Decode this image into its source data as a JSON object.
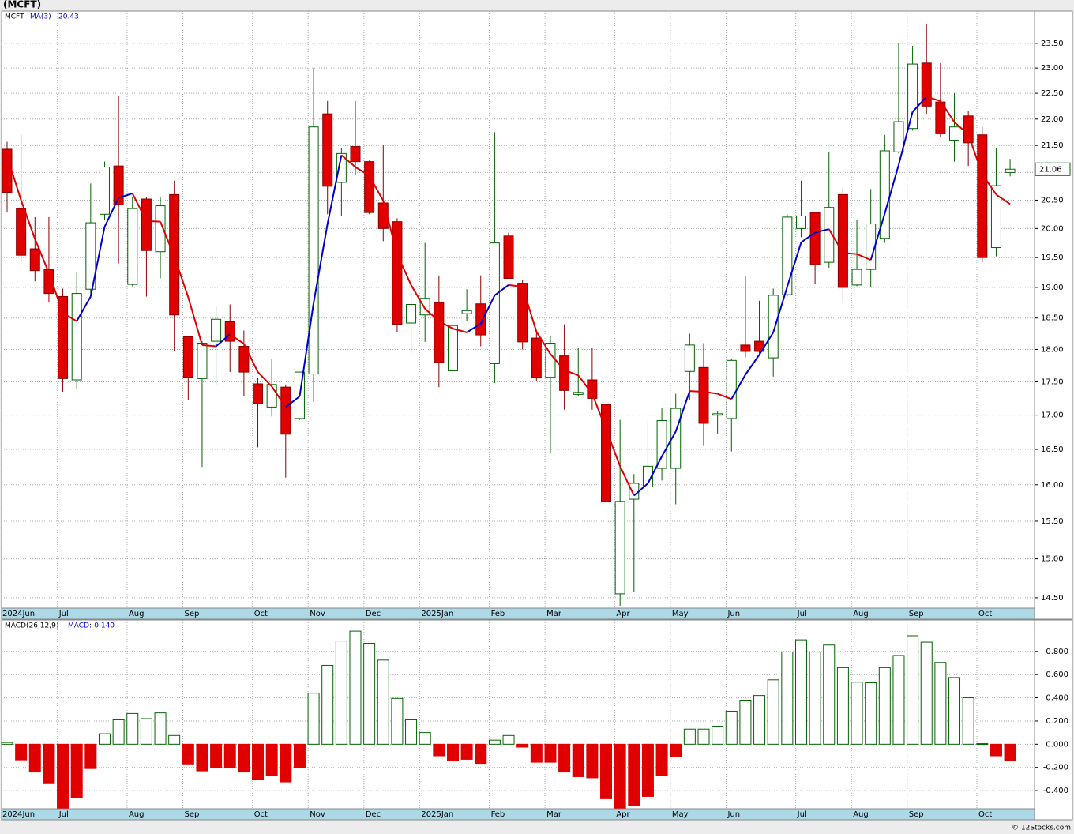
{
  "chart_data": [
    {
      "type": "candlestick",
      "title": "(MCFT)",
      "symbol": "MCFT",
      "categories": [
        "2024Jun",
        null,
        null,
        null,
        "Jul",
        null,
        null,
        null,
        null,
        "Aug",
        null,
        null,
        null,
        "Sep",
        null,
        null,
        null,
        null,
        "Oct",
        null,
        null,
        null,
        "Nov",
        null,
        null,
        null,
        "Dec",
        null,
        null,
        null,
        "2025Jan",
        null,
        null,
        null,
        null,
        "Feb",
        null,
        null,
        null,
        "Mar",
        null,
        null,
        null,
        null,
        "Apr",
        null,
        null,
        null,
        "May",
        null,
        null,
        null,
        "Jun",
        null,
        null,
        null,
        null,
        "Jul",
        null,
        null,
        null,
        "Aug",
        null,
        null,
        null,
        "Sep",
        null,
        null,
        null,
        null,
        "Oct",
        null,
        null
      ],
      "open": [
        21.43,
        20.35,
        19.65,
        19.3,
        18.85,
        17.53,
        18.97,
        20.25,
        21.12,
        19.05,
        20.52,
        19.6,
        20.6,
        18.2,
        17.55,
        18.13,
        18.44,
        18.05,
        17.47,
        17.12,
        17.42,
        16.95,
        17.62,
        22.1,
        20.82,
        21.48,
        21.2,
        20.45,
        20.12,
        18.42,
        18.55,
        18.75,
        17.67,
        18.57,
        18.73,
        17.78,
        19.87,
        19.07,
        18.18,
        17.57,
        17.9,
        17.31,
        17.53,
        17.16,
        14.55,
        15.8,
        15.97,
        16.23,
        16.23,
        17.66,
        17.72,
        17.0,
        16.95,
        18.07,
        18.13,
        17.87,
        18.88,
        20.0,
        20.28,
        19.42,
        20.6,
        19.04,
        19.3,
        19.83,
        21.38,
        21.82,
        23.1,
        22.33,
        21.6,
        22.06,
        21.7,
        19.67,
        21.0
      ],
      "high": [
        21.57,
        21.7,
        20.2,
        20.2,
        18.98,
        19.25,
        20.8,
        21.2,
        22.45,
        20.55,
        20.55,
        20.55,
        20.85,
        18.2,
        18.13,
        18.7,
        18.72,
        18.3,
        17.56,
        17.85,
        17.46,
        17.65,
        23.0,
        22.35,
        21.45,
        22.35,
        21.22,
        21.5,
        20.18,
        19.2,
        19.75,
        19.2,
        18.48,
        18.97,
        19.2,
        21.75,
        19.93,
        19.12,
        18.3,
        18.22,
        18.4,
        18.02,
        18.02,
        17.55,
        16.93,
        16.15,
        16.92,
        17.1,
        17.32,
        18.25,
        18.1,
        17.06,
        17.86,
        19.18,
        18.78,
        18.98,
        20.25,
        20.85,
        20.28,
        21.38,
        20.72,
        20.15,
        20.7,
        21.7,
        23.5,
        23.45,
        23.9,
        23.1,
        22.5,
        22.15,
        21.85,
        21.45,
        21.25
      ],
      "low": [
        20.28,
        19.45,
        19.1,
        18.75,
        17.35,
        17.4,
        18.88,
        20.15,
        19.4,
        19.02,
        18.85,
        19.15,
        17.97,
        17.22,
        16.25,
        17.45,
        17.65,
        17.28,
        16.53,
        16.98,
        16.1,
        16.93,
        17.2,
        20.25,
        20.22,
        20.95,
        20.25,
        19.78,
        18.27,
        17.9,
        18.12,
        17.42,
        17.63,
        18.45,
        18.05,
        17.48,
        19.15,
        18.0,
        17.51,
        16.46,
        17.08,
        17.29,
        17.08,
        15.4,
        14.4,
        14.57,
        15.88,
        16.06,
        15.73,
        17.23,
        16.55,
        16.73,
        16.47,
        17.88,
        17.93,
        17.58,
        18.85,
        19.85,
        19.05,
        19.33,
        18.75,
        19.02,
        19.0,
        19.75,
        21.35,
        21.78,
        22.1,
        21.65,
        21.2,
        21.12,
        19.42,
        19.52,
        20.93
      ],
      "close": [
        20.64,
        19.54,
        19.28,
        18.9,
        17.55,
        18.9,
        20.1,
        21.1,
        20.42,
        20.35,
        19.62,
        20.4,
        18.55,
        17.57,
        18.1,
        18.48,
        18.13,
        17.65,
        17.17,
        17.46,
        16.72,
        17.65,
        21.85,
        20.75,
        21.35,
        21.2,
        20.28,
        20.0,
        18.4,
        18.72,
        18.82,
        17.8,
        18.38,
        18.62,
        18.23,
        19.75,
        19.15,
        18.12,
        17.57,
        18.1,
        17.37,
        17.34,
        17.25,
        15.77,
        15.77,
        16.02,
        16.26,
        16.92,
        17.1,
        18.07,
        16.88,
        17.02,
        17.83,
        17.97,
        17.97,
        18.87,
        20.2,
        20.22,
        19.38,
        20.37,
        19.0,
        19.3,
        20.08,
        21.4,
        21.95,
        23.08,
        22.25,
        21.72,
        21.85,
        21.55,
        19.5,
        20.76,
        21.06
      ],
      "up_color": "#006400",
      "down_color": "#e00000",
      "series": [
        {
          "name": "MA(3)",
          "rising_color": "#0000cc",
          "falling_color": "#e00000",
          "values": [
            21.3,
            20.5,
            19.82,
            19.24,
            18.58,
            18.45,
            18.85,
            20.03,
            20.54,
            20.62,
            20.13,
            20.12,
            19.52,
            18.84,
            18.07,
            18.05,
            18.24,
            18.09,
            17.65,
            17.43,
            17.12,
            17.28,
            18.74,
            20.08,
            21.32,
            21.1,
            20.94,
            20.49,
            19.56,
            19.04,
            18.65,
            18.45,
            18.33,
            18.27,
            18.41,
            18.87,
            19.04,
            19.01,
            18.28,
            17.93,
            17.68,
            17.6,
            17.32,
            16.79,
            16.26,
            15.85,
            16.02,
            16.4,
            16.76,
            17.36,
            17.35,
            17.32,
            17.24,
            17.61,
            17.92,
            18.27,
            19.01,
            19.76,
            19.93,
            19.99,
            19.58,
            19.56,
            19.46,
            20.26,
            21.14,
            22.14,
            22.43,
            22.35,
            21.94,
            21.71,
            20.97,
            20.6,
            20.43
          ]
        }
      ],
      "ylim": [
        14.37,
        24.17
      ],
      "log_scale": true,
      "grid": true,
      "yticks": [
        {
          "value": 14.5,
          "label": "14.50"
        },
        {
          "value": 15,
          "label": "15.00"
        },
        {
          "value": 15.5,
          "label": "15.50"
        },
        {
          "value": 16,
          "label": "16.00"
        },
        {
          "value": 16.5,
          "label": "16.50"
        },
        {
          "value": 17,
          "label": "17.00"
        },
        {
          "value": 17.5,
          "label": "17.50"
        },
        {
          "value": 18,
          "label": "18.00"
        },
        {
          "value": 18.5,
          "label": "18.50"
        },
        {
          "value": 19,
          "label": "19.00"
        },
        {
          "value": 19.5,
          "label": "19.50"
        },
        {
          "value": 20,
          "label": "20.00"
        },
        {
          "value": 20.5,
          "label": "20.50"
        },
        {
          "value": 21,
          "label": "21.00"
        },
        {
          "value": 21.5,
          "label": "21.50"
        },
        {
          "value": 22,
          "label": "22.00"
        },
        {
          "value": 22.5,
          "label": "22.50"
        },
        {
          "value": 23,
          "label": "23.00"
        },
        {
          "value": 23.5,
          "label": "23.50"
        }
      ]
    },
    {
      "type": "bar",
      "title": "MACD(26,12,9)",
      "label": "MACD:-0.140",
      "categories": [
        "2024Jun",
        null,
        null,
        null,
        "Jul",
        null,
        null,
        null,
        null,
        "Aug",
        null,
        null,
        null,
        "Sep",
        null,
        null,
        null,
        null,
        "Oct",
        null,
        null,
        null,
        "Nov",
        null,
        null,
        null,
        "Dec",
        null,
        null,
        null,
        "2025Jan",
        null,
        null,
        null,
        null,
        "Feb",
        null,
        null,
        null,
        "Mar",
        null,
        null,
        null,
        null,
        "Apr",
        null,
        null,
        null,
        "May",
        null,
        null,
        null,
        "Jun",
        null,
        null,
        null,
        null,
        "Jul",
        null,
        null,
        null,
        "Aug",
        null,
        null,
        null,
        "Sep",
        null,
        null,
        null,
        null,
        "Oct",
        null,
        null
      ],
      "values": [
        0.015,
        -0.135,
        -0.24,
        -0.34,
        -0.55,
        -0.46,
        -0.21,
        0.09,
        0.21,
        0.265,
        0.22,
        0.27,
        0.075,
        -0.17,
        -0.23,
        -0.2,
        -0.2,
        -0.24,
        -0.305,
        -0.27,
        -0.325,
        -0.2,
        0.44,
        0.68,
        0.89,
        0.975,
        0.87,
        0.725,
        0.395,
        0.21,
        0.1,
        -0.1,
        -0.14,
        -0.13,
        -0.165,
        0.035,
        0.075,
        -0.025,
        -0.155,
        -0.155,
        -0.24,
        -0.28,
        -0.29,
        -0.47,
        -0.55,
        -0.53,
        -0.45,
        -0.27,
        -0.11,
        0.13,
        0.13,
        0.155,
        0.285,
        0.38,
        0.42,
        0.555,
        0.795,
        0.9,
        0.795,
        0.855,
        0.66,
        0.535,
        0.53,
        0.66,
        0.765,
        0.935,
        0.88,
        0.705,
        0.575,
        0.4,
        0.005,
        -0.1,
        -0.14
      ],
      "positive_color": "#006400",
      "negative_color": "#e00000",
      "ylim": [
        -0.556,
        1.071
      ],
      "grid": true,
      "yticks": [
        {
          "value": -0.4,
          "label": "-0.400"
        },
        {
          "value": -0.2,
          "label": "-0.200"
        },
        {
          "value": 0,
          "label": "0.000"
        },
        {
          "value": 0.2,
          "label": "0.200"
        },
        {
          "value": 0.4,
          "label": "0.400"
        },
        {
          "value": 0.6,
          "label": "0.600"
        },
        {
          "value": 0.8,
          "label": "0.800"
        }
      ]
    }
  ],
  "footer": "© 12Stocks.com"
}
